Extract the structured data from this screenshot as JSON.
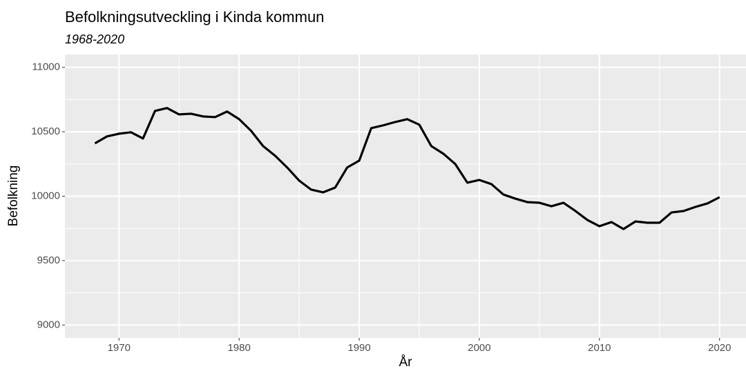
{
  "chart_data": {
    "type": "line",
    "title": "Befolkningsutveckling i Kinda kommun",
    "subtitle": "1968-2020",
    "xlabel": "År",
    "ylabel": "Befolkning",
    "x": [
      1968,
      1969,
      1970,
      1971,
      1972,
      1973,
      1974,
      1975,
      1976,
      1977,
      1978,
      1979,
      1980,
      1981,
      1982,
      1983,
      1984,
      1985,
      1986,
      1987,
      1988,
      1989,
      1990,
      1991,
      1992,
      1993,
      1994,
      1995,
      1996,
      1997,
      1998,
      1999,
      2000,
      2001,
      2002,
      2003,
      2004,
      2005,
      2006,
      2007,
      2008,
      2009,
      2010,
      2011,
      2012,
      2013,
      2014,
      2015,
      2016,
      2017,
      2018,
      2019,
      2020
    ],
    "values": [
      10410,
      10464,
      10485,
      10496,
      10448,
      10662,
      10684,
      10635,
      10640,
      10619,
      10614,
      10657,
      10598,
      10507,
      10389,
      10314,
      10223,
      10121,
      10051,
      10030,
      10067,
      10223,
      10276,
      10528,
      10550,
      10576,
      10598,
      10555,
      10389,
      10330,
      10249,
      10105,
      10126,
      10094,
      10013,
      9981,
      9954,
      9949,
      9922,
      9949,
      9885,
      9815,
      9767,
      9799,
      9745,
      9804,
      9794,
      9794,
      9874,
      9885,
      9917,
      9944,
      9992
    ],
    "color": "#000000",
    "xlim": [
      1965.5,
      2022.2
    ],
    "ylim": [
      8900,
      11100
    ],
    "xticks": [
      1970,
      1980,
      1990,
      2000,
      2010,
      2020
    ],
    "yticks": [
      9000,
      9500,
      10000,
      10500,
      11000
    ],
    "xminor": [
      1965,
      1975,
      1985,
      1995,
      2005,
      2015
    ],
    "yminor": [
      9250,
      9750,
      10250,
      10750
    ],
    "grid": true
  }
}
